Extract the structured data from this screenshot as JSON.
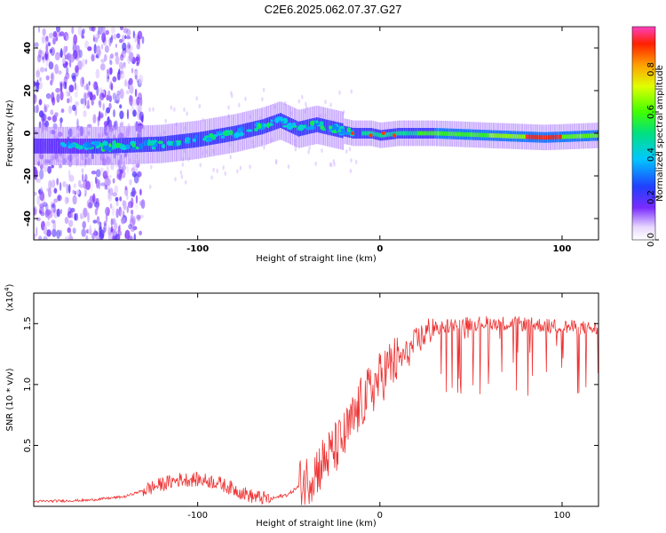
{
  "title": "C2E6.2025.062.07.37.G27",
  "chart_data": [
    {
      "type": "heatmap",
      "xlabel": "Height of straight line (km)",
      "ylabel": "Frequency (Hz)",
      "xlim": [
        -190,
        120
      ],
      "ylim": [
        -50,
        50
      ],
      "x_ticks": [
        -100,
        0,
        100
      ],
      "y_ticks": [
        -40,
        -20,
        0,
        20,
        40
      ],
      "colorbar": {
        "label": "Normalized spectral amplitude",
        "range": [
          0,
          1
        ],
        "ticks": [
          0.0,
          0.2,
          0.4,
          0.6,
          0.8
        ]
      },
      "ridge": {
        "description_values": "center frequency (Hz) vs height (km)",
        "x": [
          -190,
          -150,
          -120,
          -100,
          -80,
          -65,
          -55,
          -45,
          -35,
          -25,
          -15,
          -5,
          0,
          10,
          30,
          60,
          90,
          120
        ],
        "y": [
          -6,
          -6,
          -5,
          -3,
          0,
          3,
          6,
          2,
          4,
          2,
          0,
          0,
          -1,
          0,
          0,
          -1,
          -2,
          -1
        ]
      }
    },
    {
      "type": "line",
      "xlabel": "Height of straight line (km)",
      "ylabel": "SNR (10 * v/v)",
      "y_scale_label": "(x10",
      "y_scale_exp": "4",
      "xlim": [
        -190,
        120
      ],
      "ylim": [
        0,
        1.75
      ],
      "x_ticks": [
        -100,
        0,
        100
      ],
      "y_ticks": [
        0.5,
        1.0,
        1.5
      ],
      "y_tick_labels": [
        "0.5",
        "1.0",
        "1.5"
      ],
      "color": "#ee3333",
      "series": [
        {
          "x": [
            -190,
            -160,
            -140,
            -120,
            -110,
            -100,
            -90,
            -80,
            -70,
            -60,
            -50,
            -40,
            -30,
            -20,
            -15,
            -10,
            -5,
            0,
            5,
            10,
            15,
            20,
            30,
            40,
            60,
            80,
            100,
            120
          ],
          "y": [
            0.04,
            0.05,
            0.08,
            0.18,
            0.22,
            0.22,
            0.2,
            0.14,
            0.08,
            0.06,
            0.1,
            0.22,
            0.38,
            0.55,
            0.7,
            0.85,
            0.95,
            1.05,
            1.15,
            1.2,
            1.25,
            1.35,
            1.48,
            1.52,
            1.53,
            1.52,
            1.5,
            1.48
          ]
        }
      ]
    }
  ]
}
